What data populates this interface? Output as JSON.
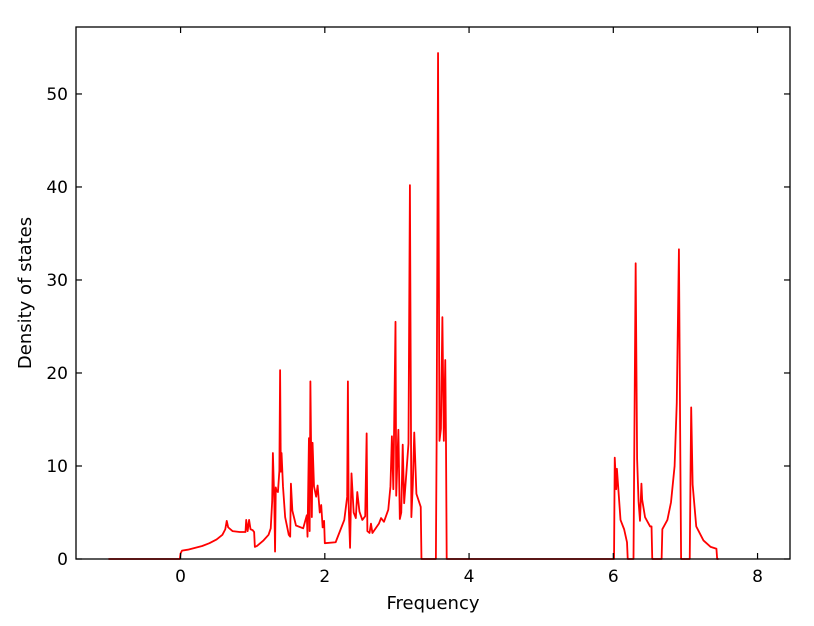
{
  "chart_data": {
    "type": "line",
    "title": "",
    "xlabel": "Frequency",
    "ylabel": "Density of states",
    "xlim": [
      -1.45,
      8.45
    ],
    "ylim": [
      0,
      57.2
    ],
    "xticks": [
      0,
      2,
      4,
      6,
      8
    ],
    "yticks": [
      0,
      10,
      20,
      30,
      40,
      50
    ],
    "xtick_labels": [
      "0",
      "2",
      "4",
      "6",
      "8"
    ],
    "ytick_labels": [
      "0",
      "10",
      "20",
      "30",
      "40",
      "50"
    ],
    "grid": false,
    "legend": "none",
    "tick_direction": "in",
    "ticks_on_all_sides": true,
    "series": [
      {
        "color": "#ff0000",
        "points": [
          [
            -1.0,
            0
          ],
          [
            -0.01,
            0
          ],
          [
            0.0,
            0.6
          ],
          [
            0.02,
            0.9
          ],
          [
            0.1,
            1.0
          ],
          [
            0.2,
            1.2
          ],
          [
            0.3,
            1.4
          ],
          [
            0.4,
            1.7
          ],
          [
            0.5,
            2.1
          ],
          [
            0.58,
            2.6
          ],
          [
            0.62,
            3.2
          ],
          [
            0.64,
            4.1
          ],
          [
            0.66,
            3.4
          ],
          [
            0.72,
            3.0
          ],
          [
            0.82,
            2.9
          ],
          [
            0.9,
            2.9
          ],
          [
            0.91,
            4.2
          ],
          [
            0.93,
            3.0
          ],
          [
            0.95,
            4.2
          ],
          [
            0.97,
            3.2
          ],
          [
            1.0,
            3.1
          ],
          [
            1.02,
            2.9
          ],
          [
            1.03,
            1.3
          ],
          [
            1.06,
            1.4
          ],
          [
            1.15,
            2.0
          ],
          [
            1.22,
            2.6
          ],
          [
            1.25,
            3.3
          ],
          [
            1.27,
            6.2
          ],
          [
            1.28,
            11.4
          ],
          [
            1.3,
            6.0
          ],
          [
            1.31,
            0.8
          ],
          [
            1.32,
            7.7
          ],
          [
            1.33,
            7.3
          ],
          [
            1.35,
            7.2
          ],
          [
            1.37,
            9.5
          ],
          [
            1.38,
            20.3
          ],
          [
            1.39,
            9.4
          ],
          [
            1.4,
            11.4
          ],
          [
            1.42,
            7.8
          ],
          [
            1.45,
            4.5
          ],
          [
            1.5,
            2.6
          ],
          [
            1.52,
            2.4
          ],
          [
            1.53,
            8.1
          ],
          [
            1.55,
            5.2
          ],
          [
            1.6,
            3.6
          ],
          [
            1.7,
            3.3
          ],
          [
            1.75,
            4.7
          ],
          [
            1.76,
            2.4
          ],
          [
            1.78,
            13.0
          ],
          [
            1.79,
            3.0
          ],
          [
            1.8,
            19.1
          ],
          [
            1.82,
            4.5
          ],
          [
            1.83,
            12.5
          ],
          [
            1.85,
            7.8
          ],
          [
            1.88,
            6.7
          ],
          [
            1.9,
            7.9
          ],
          [
            1.93,
            5.0
          ],
          [
            1.95,
            5.8
          ],
          [
            1.97,
            3.4
          ],
          [
            1.99,
            4.1
          ],
          [
            2.0,
            1.7
          ],
          [
            2.15,
            1.8
          ],
          [
            2.22,
            3.2
          ],
          [
            2.27,
            4.2
          ],
          [
            2.31,
            6.7
          ],
          [
            2.32,
            19.1
          ],
          [
            2.33,
            6.0
          ],
          [
            2.35,
            1.2
          ],
          [
            2.37,
            9.2
          ],
          [
            2.4,
            5.0
          ],
          [
            2.43,
            4.4
          ],
          [
            2.45,
            7.2
          ],
          [
            2.48,
            5.1
          ],
          [
            2.52,
            4.2
          ],
          [
            2.56,
            4.6
          ],
          [
            2.58,
            13.5
          ],
          [
            2.59,
            3.0
          ],
          [
            2.62,
            2.8
          ],
          [
            2.64,
            3.8
          ],
          [
            2.66,
            2.8
          ],
          [
            2.75,
            3.8
          ],
          [
            2.78,
            4.4
          ],
          [
            2.82,
            4.0
          ],
          [
            2.88,
            5.3
          ],
          [
            2.91,
            7.8
          ],
          [
            2.93,
            13.2
          ],
          [
            2.95,
            7.5
          ],
          [
            2.98,
            25.5
          ],
          [
            2.99,
            6.8
          ],
          [
            3.02,
            13.9
          ],
          [
            3.04,
            4.3
          ],
          [
            3.06,
            5.0
          ],
          [
            3.08,
            12.3
          ],
          [
            3.1,
            6.0
          ],
          [
            3.13,
            9.2
          ],
          [
            3.16,
            12.4
          ],
          [
            3.18,
            40.2
          ],
          [
            3.2,
            4.5
          ],
          [
            3.22,
            8.0
          ],
          [
            3.24,
            13.6
          ],
          [
            3.27,
            7.0
          ],
          [
            3.33,
            5.6
          ],
          [
            3.34,
            0.0
          ],
          [
            3.54,
            0.0
          ],
          [
            3.55,
            12.5
          ],
          [
            3.57,
            54.4
          ],
          [
            3.59,
            12.7
          ],
          [
            3.61,
            14.0
          ],
          [
            3.63,
            26.0
          ],
          [
            3.65,
            12.7
          ],
          [
            3.67,
            21.4
          ],
          [
            3.68,
            12.8
          ],
          [
            3.69,
            0.0
          ],
          [
            6.01,
            0.0
          ],
          [
            6.02,
            10.9
          ],
          [
            6.04,
            7.5
          ],
          [
            6.05,
            9.7
          ],
          [
            6.07,
            7.5
          ],
          [
            6.1,
            4.2
          ],
          [
            6.15,
            3.2
          ],
          [
            6.19,
            1.8
          ],
          [
            6.2,
            0.0
          ],
          [
            6.28,
            0.0
          ],
          [
            6.29,
            10.8
          ],
          [
            6.31,
            31.8
          ],
          [
            6.33,
            10.8
          ],
          [
            6.35,
            6.2
          ],
          [
            6.37,
            4.1
          ],
          [
            6.39,
            8.1
          ],
          [
            6.4,
            6.4
          ],
          [
            6.44,
            4.5
          ],
          [
            6.51,
            3.5
          ],
          [
            6.53,
            3.5
          ],
          [
            6.54,
            0.0
          ],
          [
            6.67,
            0.0
          ],
          [
            6.68,
            3.2
          ],
          [
            6.75,
            4.2
          ],
          [
            6.8,
            6.1
          ],
          [
            6.85,
            10.0
          ],
          [
            6.88,
            16.8
          ],
          [
            6.91,
            33.3
          ],
          [
            6.93,
            10.2
          ],
          [
            6.94,
            0.0
          ],
          [
            7.06,
            0.0
          ],
          [
            7.07,
            8.5
          ],
          [
            7.08,
            16.3
          ],
          [
            7.1,
            8.0
          ],
          [
            7.15,
            3.5
          ],
          [
            7.25,
            2.0
          ],
          [
            7.35,
            1.3
          ],
          [
            7.43,
            1.1
          ],
          [
            7.44,
            0.0
          ],
          [
            7.46,
            0.0
          ]
        ]
      }
    ]
  }
}
